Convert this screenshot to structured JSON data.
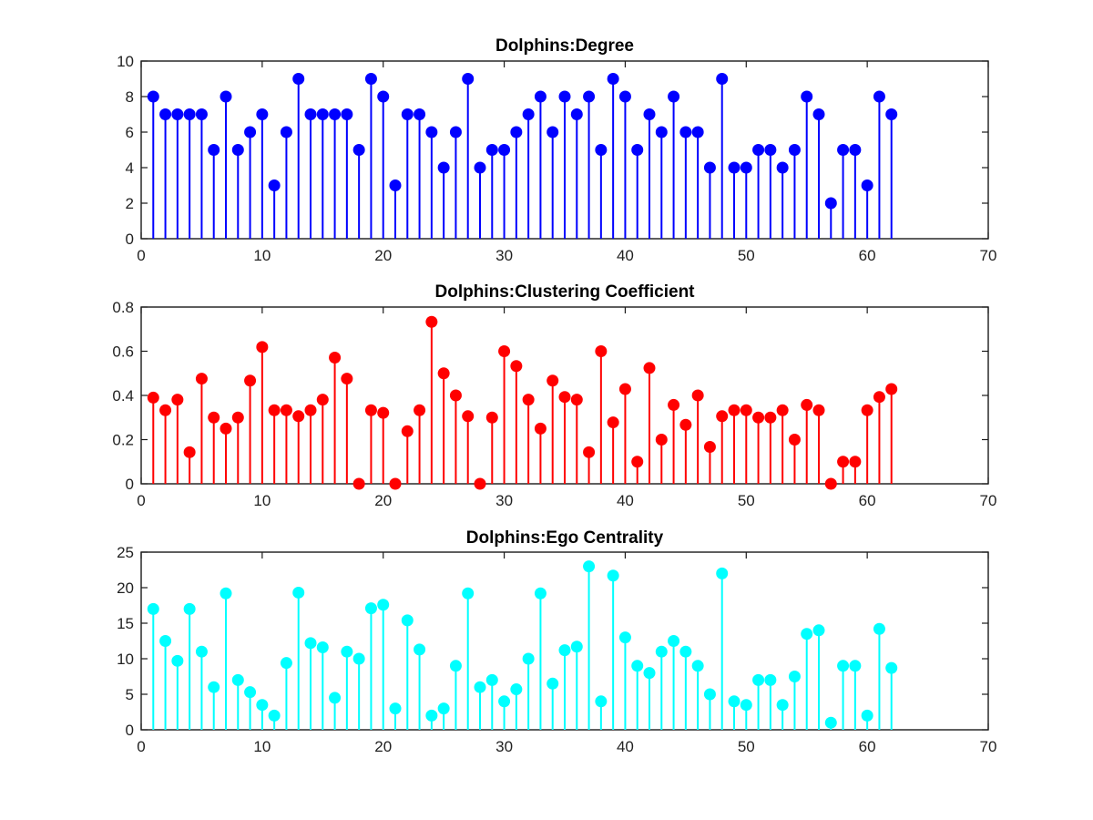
{
  "chart_data": [
    {
      "type": "stem",
      "title": "Dolphins:Degree",
      "xlabel": "",
      "ylabel": "",
      "xlim": [
        0,
        70
      ],
      "ylim": [
        0,
        10
      ],
      "xticks": [
        0,
        10,
        20,
        30,
        40,
        50,
        60,
        70
      ],
      "yticks": [
        0,
        2,
        4,
        6,
        8,
        10
      ],
      "color": "#0000ff",
      "x": [
        1,
        2,
        3,
        4,
        5,
        6,
        7,
        8,
        9,
        10,
        11,
        12,
        13,
        14,
        15,
        16,
        17,
        18,
        19,
        20,
        21,
        22,
        23,
        24,
        25,
        26,
        27,
        28,
        29,
        30,
        31,
        32,
        33,
        34,
        35,
        36,
        37,
        38,
        39,
        40,
        41,
        42,
        43,
        44,
        45,
        46,
        47,
        48,
        49,
        50,
        51,
        52,
        53,
        54,
        55,
        56,
        57,
        58,
        59,
        60,
        61,
        62
      ],
      "values": [
        8,
        7,
        7,
        7,
        7,
        5,
        8,
        5,
        6,
        7,
        3,
        6,
        9,
        7,
        7,
        7,
        7,
        5,
        9,
        8,
        3,
        7,
        7,
        6,
        4,
        6,
        9,
        4,
        5,
        5,
        6,
        7,
        8,
        6,
        8,
        7,
        8,
        5,
        9,
        8,
        5,
        7,
        6,
        8,
        6,
        6,
        4,
        9,
        4,
        4,
        5,
        5,
        4,
        5,
        8,
        7,
        2,
        5,
        5,
        3,
        8,
        7
      ]
    },
    {
      "type": "stem",
      "title": "Dolphins:Clustering Coefficient",
      "xlabel": "",
      "ylabel": "",
      "xlim": [
        0,
        70
      ],
      "ylim": [
        0,
        0.8
      ],
      "xticks": [
        0,
        10,
        20,
        30,
        40,
        50,
        60,
        70
      ],
      "yticks": [
        0,
        0.2,
        0.4,
        0.6,
        0.8
      ],
      "color": "#ff0000",
      "x": [
        1,
        2,
        3,
        4,
        5,
        6,
        7,
        8,
        9,
        10,
        11,
        12,
        13,
        14,
        15,
        16,
        17,
        18,
        19,
        20,
        21,
        22,
        23,
        24,
        25,
        26,
        27,
        28,
        29,
        30,
        31,
        32,
        33,
        34,
        35,
        36,
        37,
        38,
        39,
        40,
        41,
        42,
        43,
        44,
        45,
        46,
        47,
        48,
        49,
        50,
        51,
        52,
        53,
        54,
        55,
        56,
        57,
        58,
        59,
        60,
        61,
        62
      ],
      "values": [
        0.39,
        0.333,
        0.381,
        0.143,
        0.476,
        0.3,
        0.25,
        0.3,
        0.467,
        0.619,
        0.333,
        0.333,
        0.306,
        0.333,
        0.381,
        0.571,
        0.476,
        0,
        0.333,
        0.321,
        0,
        0.238,
        0.333,
        0.733,
        0.5,
        0.4,
        0.306,
        0,
        0.3,
        0.6,
        0.533,
        0.381,
        0.25,
        0.467,
        0.393,
        0.381,
        0.143,
        0.6,
        0.278,
        0.429,
        0.1,
        0.524,
        0.2,
        0.357,
        0.267,
        0.4,
        0.167,
        0.306,
        0.333,
        0.333,
        0.3,
        0.3,
        0.333,
        0.2,
        0.357,
        0.333,
        0,
        0.1,
        0.1,
        0.333,
        0.393,
        0.429
      ]
    },
    {
      "type": "stem",
      "title": "Dolphins:Ego Centrality",
      "xlabel": "",
      "ylabel": "",
      "xlim": [
        0,
        70
      ],
      "ylim": [
        0,
        25
      ],
      "xticks": [
        0,
        10,
        20,
        30,
        40,
        50,
        60,
        70
      ],
      "yticks": [
        0,
        5,
        10,
        15,
        20,
        25
      ],
      "color": "#00ffff",
      "x": [
        1,
        2,
        3,
        4,
        5,
        6,
        7,
        8,
        9,
        10,
        11,
        12,
        13,
        14,
        15,
        16,
        17,
        18,
        19,
        20,
        21,
        22,
        23,
        24,
        25,
        26,
        27,
        28,
        29,
        30,
        31,
        32,
        33,
        34,
        35,
        36,
        37,
        38,
        39,
        40,
        41,
        42,
        43,
        44,
        45,
        46,
        47,
        48,
        49,
        50,
        51,
        52,
        53,
        54,
        55,
        56,
        57,
        58,
        59,
        60,
        61,
        62
      ],
      "values": [
        17,
        12.5,
        9.7,
        17,
        11,
        6,
        19.2,
        7,
        5.3,
        3.5,
        2,
        9.4,
        19.3,
        12.2,
        11.6,
        4.5,
        11,
        10,
        17.1,
        17.6,
        3,
        15.4,
        11.3,
        2,
        3,
        9,
        19.2,
        6,
        7,
        4,
        5.7,
        10,
        19.2,
        6.5,
        11.2,
        11.7,
        23,
        4,
        21.7,
        13,
        9,
        8,
        11,
        12.5,
        11,
        9,
        5,
        22,
        4,
        3.5,
        7,
        7,
        3.5,
        7.5,
        13.5,
        14,
        1,
        9,
        9,
        2,
        14.2,
        8.7
      ]
    }
  ]
}
